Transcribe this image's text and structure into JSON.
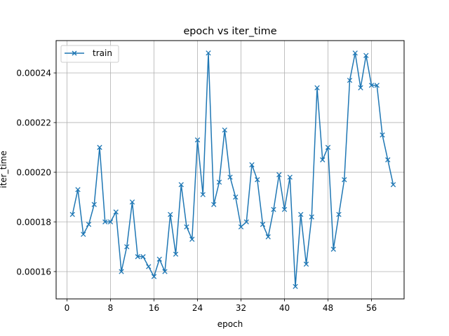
{
  "chart_data": {
    "type": "line",
    "title": "epoch vs iter_time",
    "xlabel": "epoch",
    "ylabel": "iter_time",
    "xlim": [
      -2.0,
      62.0
    ],
    "ylim": [
      0.000149,
      0.000253
    ],
    "xticks": [
      0,
      8,
      16,
      24,
      32,
      40,
      48,
      56
    ],
    "yticks": [
      0.00016,
      0.00018,
      0.0002,
      0.00022,
      0.00024
    ],
    "ytick_labels": [
      "0.00016",
      "0.00018",
      "0.00020",
      "0.00022",
      "0.00024"
    ],
    "grid": true,
    "legend": "upper left",
    "series": [
      {
        "name": "train",
        "color": "#1f77b4",
        "marker": "x",
        "x": [
          1,
          2,
          3,
          4,
          5,
          6,
          7,
          8,
          9,
          10,
          11,
          12,
          13,
          14,
          15,
          16,
          17,
          18,
          19,
          20,
          21,
          22,
          23,
          24,
          25,
          26,
          27,
          28,
          29,
          30,
          31,
          32,
          33,
          34,
          35,
          36,
          37,
          38,
          39,
          40,
          41,
          42,
          43,
          44,
          45,
          46,
          47,
          48,
          49,
          50,
          51,
          52,
          53,
          54,
          55,
          56,
          57,
          58,
          59,
          60
        ],
        "y": [
          0.000183,
          0.000193,
          0.000175,
          0.000179,
          0.000187,
          0.00021,
          0.00018,
          0.00018,
          0.000184,
          0.00016,
          0.00017,
          0.000188,
          0.000166,
          0.000166,
          0.000162,
          0.000158,
          0.000165,
          0.00016,
          0.000183,
          0.000167,
          0.000195,
          0.000178,
          0.000173,
          0.000213,
          0.000191,
          0.000248,
          0.000187,
          0.000196,
          0.000217,
          0.000198,
          0.00019,
          0.000178,
          0.00018,
          0.000203,
          0.000197,
          0.000179,
          0.000174,
          0.000185,
          0.000199,
          0.000185,
          0.000198,
          0.000154,
          0.000183,
          0.000163,
          0.000182,
          0.000234,
          0.000205,
          0.00021,
          0.000169,
          0.000183,
          0.000197,
          0.000237,
          0.000248,
          0.000234,
          0.000247,
          0.000235,
          0.000235,
          0.000215,
          0.000205,
          0.000195
        ]
      }
    ]
  }
}
